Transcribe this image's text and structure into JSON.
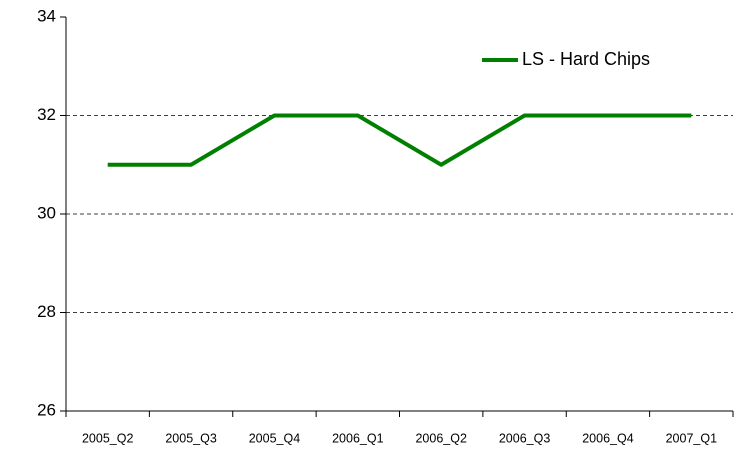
{
  "chart_data": {
    "type": "line",
    "categories": [
      "2005_Q2",
      "2005_Q3",
      "2005_Q4",
      "2006_Q1",
      "2006_Q2",
      "2006_Q3",
      "2006_Q4",
      "2007_Q1"
    ],
    "series": [
      {
        "name": "LS - Hard Chips",
        "color": "#008000",
        "values": [
          31,
          31,
          32,
          32,
          31,
          32,
          32,
          32
        ]
      }
    ],
    "ylim": [
      26,
      34
    ],
    "yticks": [
      26,
      28,
      30,
      32,
      34
    ],
    "grid": true,
    "legend": "top-right"
  }
}
